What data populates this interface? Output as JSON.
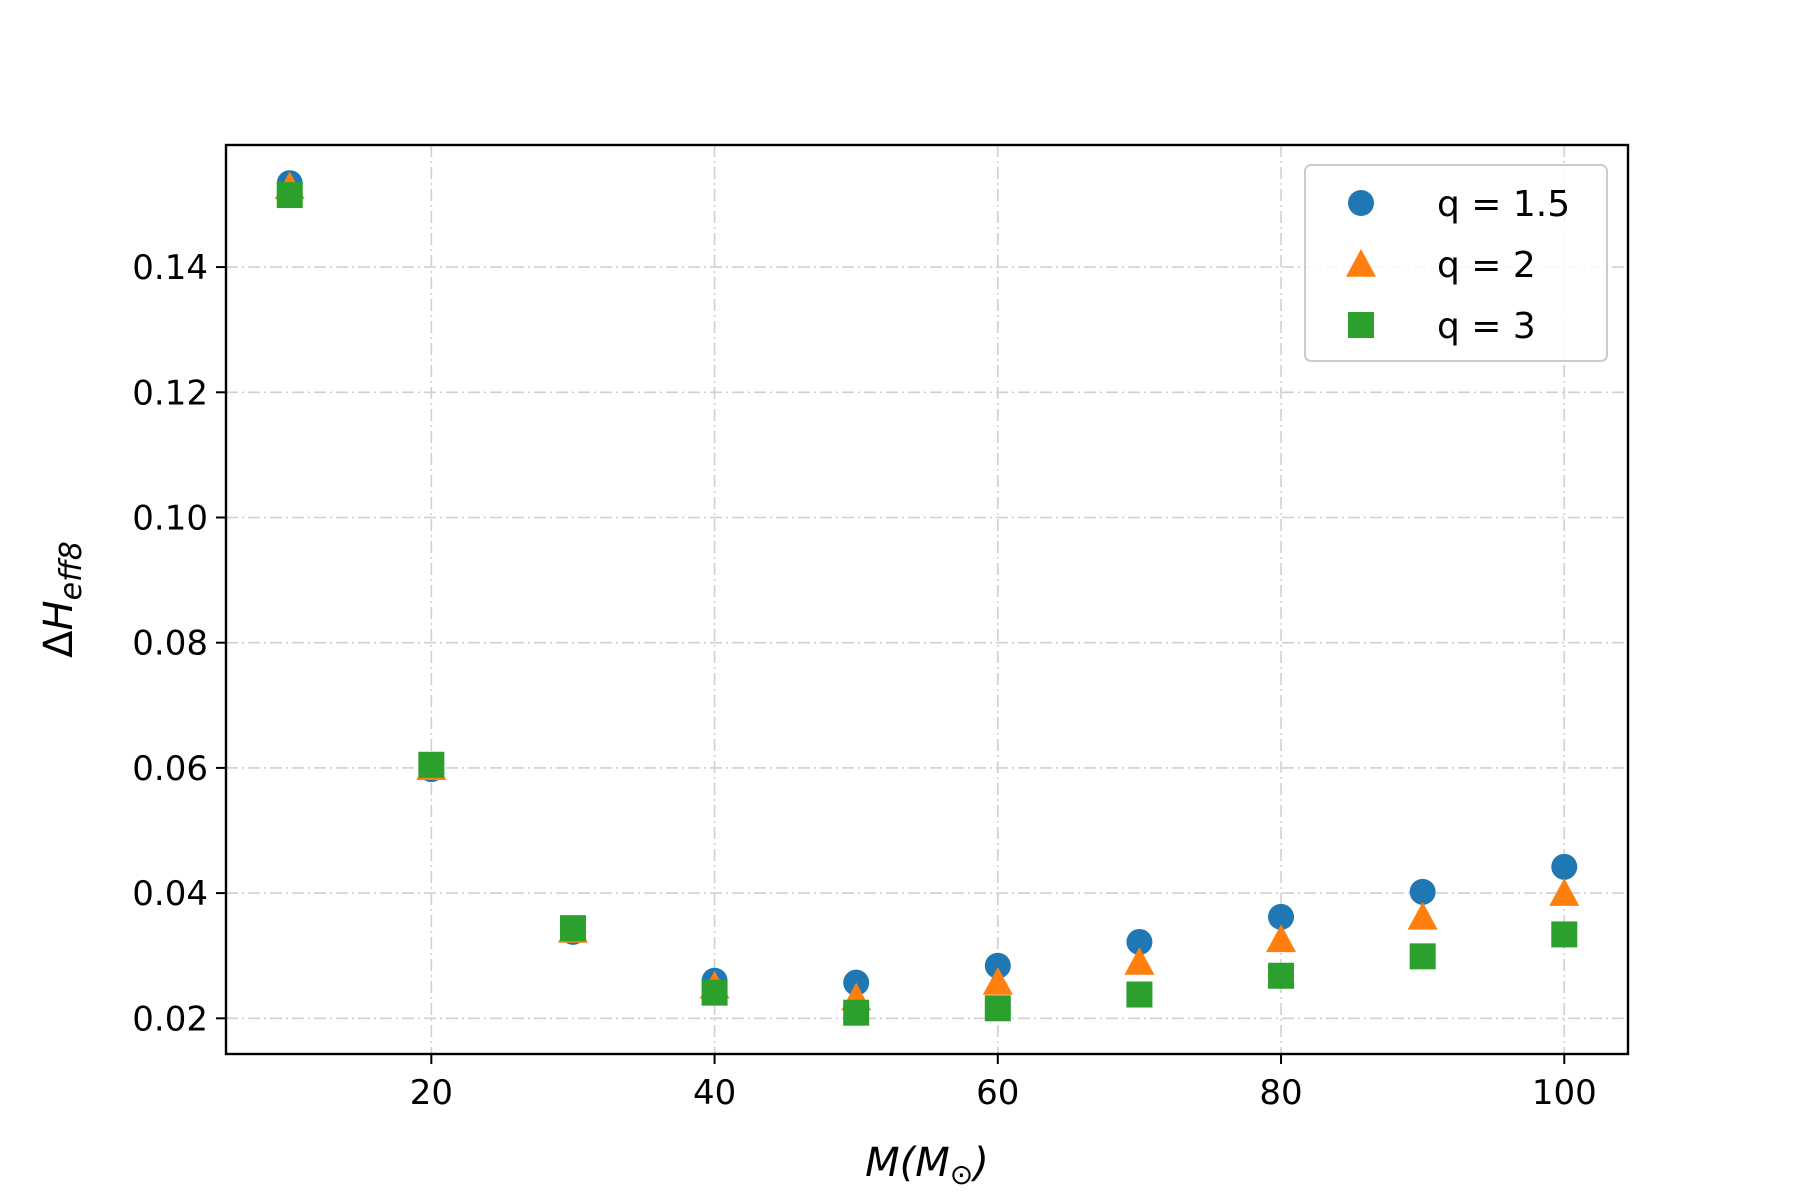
{
  "chart_data": {
    "type": "scatter",
    "title": "",
    "xlabel": "M(M⊙)",
    "ylabel": "ΔH_eff8",
    "xlim": [
      5.5,
      104.5
    ],
    "ylim": [
      0.0143,
      0.1595
    ],
    "x_ticks": [
      20,
      40,
      60,
      80,
      100
    ],
    "x_tick_labels": [
      "20",
      "40",
      "60",
      "80",
      "100"
    ],
    "y_ticks": [
      0.02,
      0.04,
      0.06,
      0.08,
      0.1,
      0.12,
      0.14
    ],
    "y_tick_labels": [
      "0.02",
      "0.04",
      "0.06",
      "0.08",
      "0.10",
      "0.12",
      "0.14"
    ],
    "grid": true,
    "legend_position": "top-right",
    "x": [
      10,
      20,
      30,
      40,
      50,
      60,
      70,
      80,
      90,
      100
    ],
    "series": [
      {
        "name": "q = 1.5",
        "marker": "circle",
        "color": "#1f77b4",
        "values": [
          0.1534,
          0.0598,
          0.0338,
          0.026,
          0.0257,
          0.0284,
          0.0322,
          0.0362,
          0.0402,
          0.0442
        ]
      },
      {
        "name": "q = 2",
        "marker": "triangle",
        "color": "#ff7f0e",
        "values": [
          0.1529,
          0.0601,
          0.0341,
          0.0252,
          0.0233,
          0.0258,
          0.029,
          0.0326,
          0.0362,
          0.04
        ]
      },
      {
        "name": "q = 3",
        "marker": "square",
        "color": "#2ca02c",
        "values": [
          0.1515,
          0.0605,
          0.0344,
          0.0241,
          0.0209,
          0.0216,
          0.0238,
          0.0268,
          0.0299,
          0.0334
        ]
      }
    ]
  }
}
